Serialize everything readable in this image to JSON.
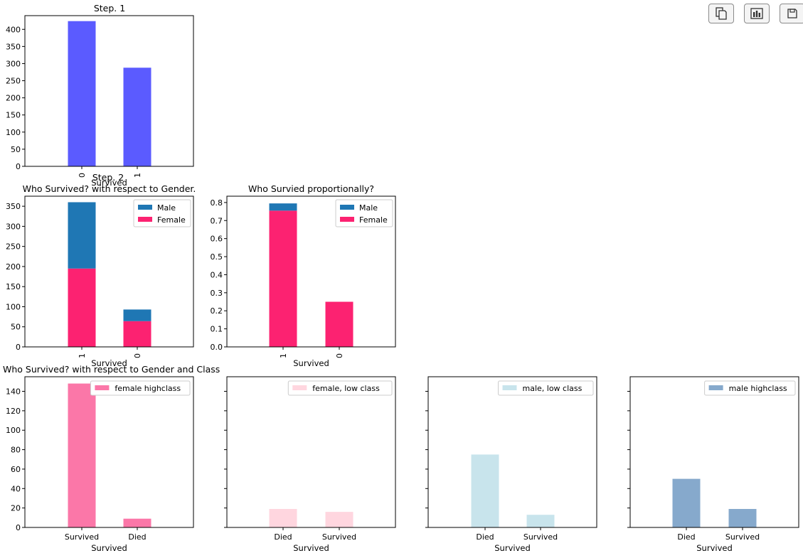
{
  "toolbar": {
    "icons": [
      "copy-icon",
      "chart-icon",
      "save-icon"
    ]
  },
  "headings": {
    "step1": "Step. 1",
    "step2": "Step. 2"
  },
  "chart_data": [
    {
      "type": "bar",
      "title": "",
      "xlabel": "Survived",
      "categories": [
        "0",
        "1"
      ],
      "values": [
        424,
        288
      ],
      "ylim": [
        0,
        440
      ],
      "yticks": [
        0,
        50,
        100,
        150,
        200,
        250,
        300,
        350,
        400
      ],
      "color": "#5b5bff",
      "xtick_rotation": "vertical"
    },
    {
      "type": "bar",
      "stacked": true,
      "title": "Who Survived? with respect to Gender.",
      "xlabel": "Survived",
      "categories": [
        "1",
        "0"
      ],
      "series": [
        {
          "name": "Female",
          "values": [
            195,
            64
          ],
          "color": "#fc2271"
        },
        {
          "name": "Male",
          "values": [
            165,
            29
          ],
          "color": "#1f77b4"
        }
      ],
      "legend": [
        "Male",
        "Female"
      ],
      "legend_position": "top-right",
      "ylim": [
        0,
        375
      ],
      "yticks": [
        0,
        50,
        100,
        150,
        200,
        250,
        300,
        350
      ],
      "xtick_rotation": "vertical"
    },
    {
      "type": "bar",
      "stacked": true,
      "title": "Who Survied proportionally?",
      "xlabel": "Survived",
      "categories": [
        "1",
        "0"
      ],
      "series": [
        {
          "name": "Female",
          "values": [
            0.755,
            0.25
          ],
          "color": "#fc2271"
        },
        {
          "name": "Male",
          "values": [
            0.04,
            0.0
          ],
          "color": "#1f77b4"
        }
      ],
      "legend": [
        "Male",
        "Female"
      ],
      "legend_position": "top-right",
      "ylim": [
        0,
        0.835
      ],
      "yticks": [
        "0.0",
        "0.1",
        "0.2",
        "0.3",
        "0.4",
        "0.5",
        "0.6",
        "0.7",
        "0.8"
      ],
      "xtick_rotation": "vertical"
    },
    {
      "type": "bar",
      "title": "Who Survived? with respect to Gender and Class",
      "xlabel": "Survived",
      "categories": [
        "Survived",
        "Died"
      ],
      "series": [
        {
          "name": "female highclass",
          "values": [
            148,
            9
          ],
          "color": "#fb77a8"
        }
      ],
      "legend_position": "top-right",
      "ylim": [
        0,
        155
      ],
      "yticks": [
        0,
        20,
        40,
        60,
        80,
        100,
        120,
        140
      ]
    },
    {
      "type": "bar",
      "title": "",
      "xlabel": "Survived",
      "categories": [
        "Died",
        "Survived"
      ],
      "series": [
        {
          "name": "female, low class",
          "values": [
            19,
            16
          ],
          "color": "#ffd6df"
        }
      ],
      "legend_position": "top-right",
      "ylim": [
        0,
        155
      ],
      "yticks_labeled": false
    },
    {
      "type": "bar",
      "title": "",
      "xlabel": "Survived",
      "categories": [
        "Died",
        "Survived"
      ],
      "series": [
        {
          "name": "male, low class",
          "values": [
            75,
            13
          ],
          "color": "#c8e4ec"
        }
      ],
      "legend_position": "top-right",
      "ylim": [
        0,
        155
      ],
      "yticks_labeled": false
    },
    {
      "type": "bar",
      "title": "",
      "xlabel": "Survived",
      "categories": [
        "Died",
        "Survived"
      ],
      "series": [
        {
          "name": "male highclass",
          "values": [
            50,
            19
          ],
          "color": "#86a9cc"
        }
      ],
      "legend_position": "top-right",
      "ylim": [
        0,
        155
      ],
      "yticks_labeled": false
    }
  ]
}
